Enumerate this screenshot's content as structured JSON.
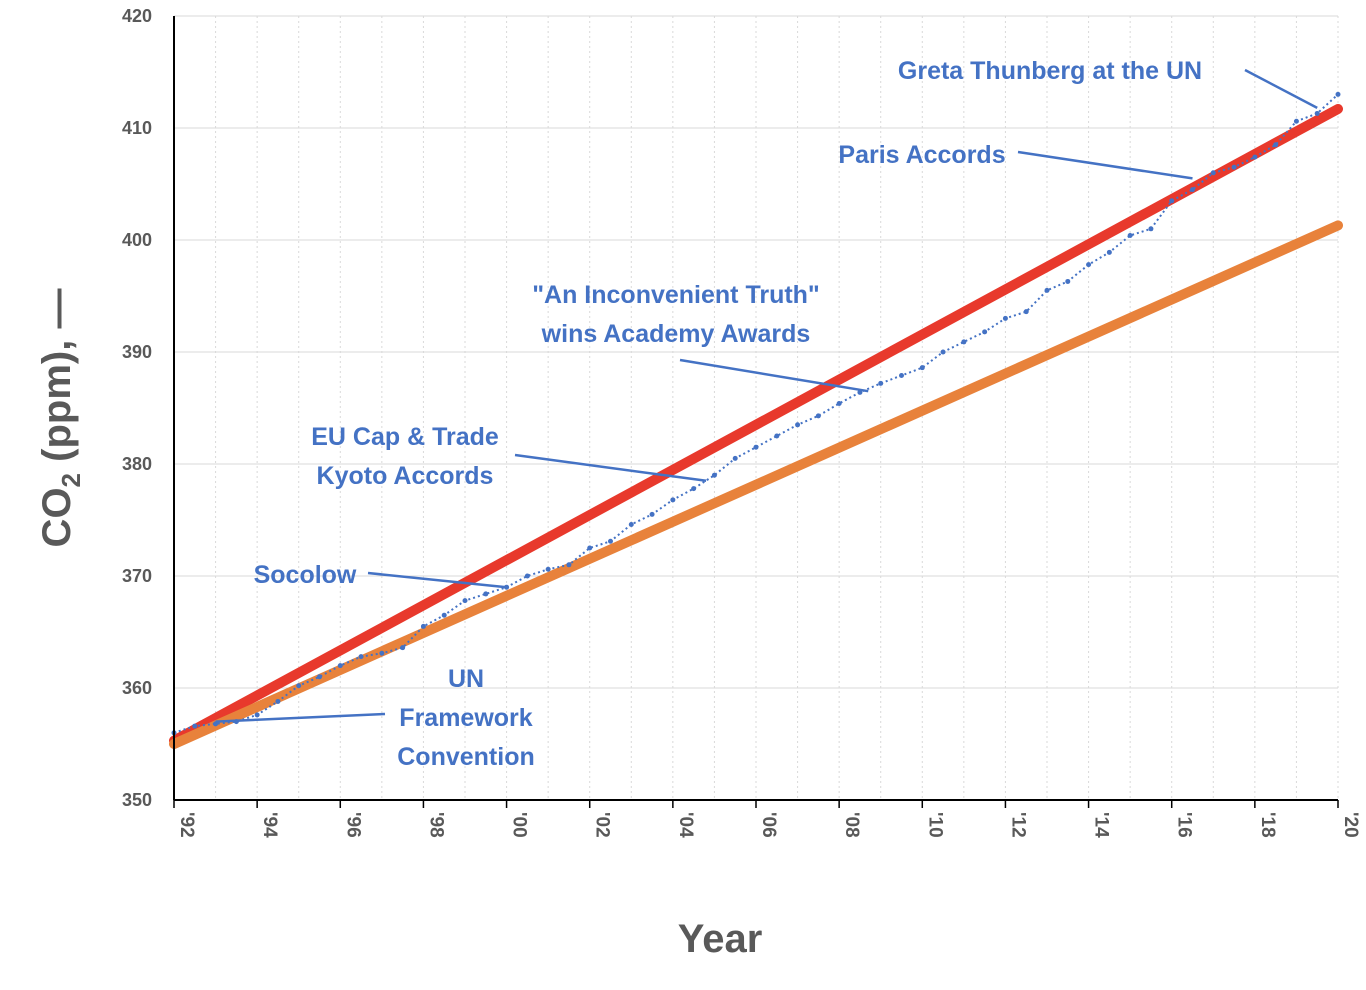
{
  "chart_data": {
    "type": "line",
    "xlabel": "Year",
    "ylabel_main": "CO",
    "ylabel_sub": "2",
    "ylabel_rest": " (ppm), —",
    "xlim": [
      1992,
      2020
    ],
    "ylim": [
      350,
      420
    ],
    "x_ticks": [
      {
        "value": 1992,
        "label": "'92"
      },
      {
        "value": 1994,
        "label": "'94"
      },
      {
        "value": 1996,
        "label": "'96"
      },
      {
        "value": 1998,
        "label": "'98"
      },
      {
        "value": 2000,
        "label": "'00"
      },
      {
        "value": 2002,
        "label": "'02"
      },
      {
        "value": 2004,
        "label": "'04"
      },
      {
        "value": 2006,
        "label": "'06"
      },
      {
        "value": 2008,
        "label": "'08"
      },
      {
        "value": 2010,
        "label": "'10"
      },
      {
        "value": 2012,
        "label": "'12"
      },
      {
        "value": 2014,
        "label": "'14"
      },
      {
        "value": 2016,
        "label": "'16"
      },
      {
        "value": 2018,
        "label": "'18"
      },
      {
        "value": 2020,
        "label": "'20"
      }
    ],
    "y_ticks": [
      350,
      360,
      370,
      380,
      390,
      400,
      410,
      420
    ],
    "grid": true,
    "series": [
      {
        "kind": "measured",
        "color": "#4472c4",
        "x": [
          1992.0,
          1992.5,
          1993.0,
          1993.5,
          1994.0,
          1994.5,
          1995.0,
          1995.5,
          1996.0,
          1996.5,
          1997.0,
          1997.5,
          1998.0,
          1998.5,
          1999.0,
          1999.5,
          2000.0,
          2000.5,
          2001.0,
          2001.5,
          2002.0,
          2002.5,
          2003.0,
          2003.5,
          2004.0,
          2004.5,
          2005.0,
          2005.5,
          2006.0,
          2006.5,
          2007.0,
          2007.5,
          2008.0,
          2008.5,
          2009.0,
          2009.5,
          2010.0,
          2010.5,
          2011.0,
          2011.5,
          2012.0,
          2012.5,
          2013.0,
          2013.5,
          2014.0,
          2014.5,
          2015.0,
          2015.5,
          2016.0,
          2016.5,
          2017.0,
          2017.5,
          2018.0,
          2018.5,
          2019.0,
          2019.5,
          2020.0
        ],
        "y": [
          356.0,
          356.6,
          356.8,
          357.0,
          357.6,
          358.8,
          360.2,
          361.0,
          362.0,
          362.8,
          363.1,
          363.6,
          365.5,
          366.5,
          367.8,
          368.4,
          369.0,
          370.0,
          370.6,
          371.0,
          372.5,
          373.1,
          374.6,
          375.5,
          376.8,
          377.8,
          379.0,
          380.5,
          381.5,
          382.5,
          383.5,
          384.3,
          385.4,
          386.4,
          387.2,
          387.9,
          388.6,
          390.0,
          390.9,
          391.8,
          393.0,
          393.6,
          395.5,
          396.3,
          397.8,
          398.9,
          400.4,
          401.0,
          403.5,
          404.5,
          406.0,
          406.5,
          407.4,
          408.5,
          410.6,
          411.3,
          413.0
        ]
      },
      {
        "kind": "trend",
        "color": "#e8392c",
        "x": [
          1992,
          2020
        ],
        "y": [
          355.3,
          411.7
        ]
      },
      {
        "kind": "trend",
        "color": "#e8823b",
        "x": [
          1992,
          2020
        ],
        "y": [
          355.0,
          401.3
        ]
      }
    ],
    "annotations": [
      {
        "lines": [
          "Greta Thunberg at the UN"
        ],
        "x": 2019.5,
        "y": 411.8
      },
      {
        "lines": [
          "Paris Accords"
        ],
        "x": 2016.5,
        "y": 405.5
      },
      {
        "lines": [
          "\"An Inconvenient Truth\"",
          "wins Academy Awards"
        ],
        "x": 2008.7,
        "y": 386.5
      },
      {
        "lines": [
          "EU Cap & Trade",
          "Kyoto Accords"
        ],
        "x": 2004.8,
        "y": 378.5
      },
      {
        "lines": [
          "Socolow"
        ],
        "x": 2000.0,
        "y": 369.0
      },
      {
        "lines": [
          "UN",
          "Framework",
          "Convention"
        ],
        "x": 1993.0,
        "y": 357.0
      }
    ]
  }
}
